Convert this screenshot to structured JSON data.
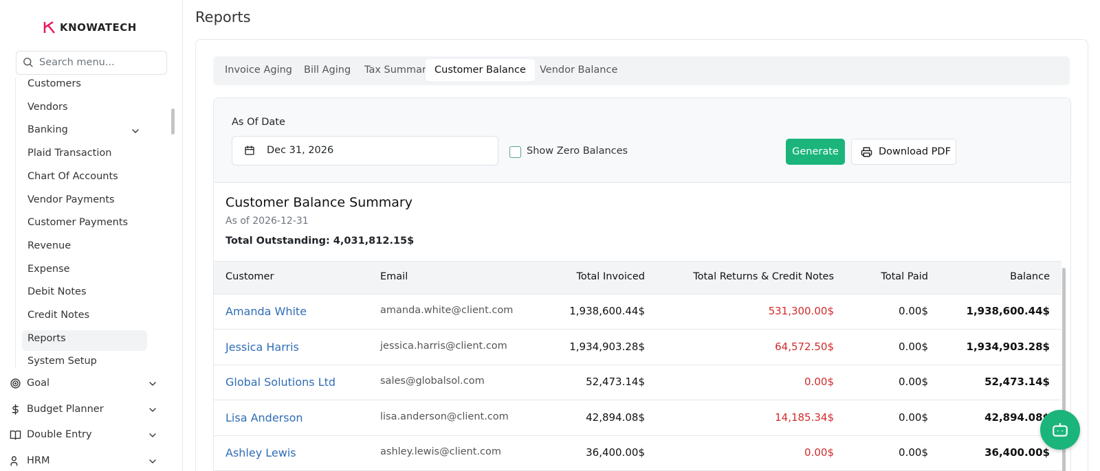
{
  "sidebar": {
    "brand": "KNOWATECH",
    "search_placeholder": "Search menu...",
    "items": [
      "Customers",
      "Vendors",
      "Banking",
      "Plaid Transaction",
      "Chart Of Accounts",
      "Vendor Payments",
      "Customer Payments",
      "Revenue",
      "Expense",
      "Debit Notes",
      "Credit Notes",
      "Reports",
      "System Setup"
    ],
    "active_item": 11,
    "expandable_item": 2,
    "groups": [
      "Goal",
      "Budget Planner",
      "Double Entry",
      "HRM"
    ]
  },
  "page": {
    "title": "Reports"
  },
  "tabs": {
    "items": [
      "Invoice Aging",
      "Bill Aging",
      "Tax Summary",
      "Customer Balance",
      "Vendor Balance"
    ],
    "active": 3
  },
  "filters": {
    "date_label": "As Of Date",
    "date_value": "Dec 31, 2026",
    "zero_balances_label": "Show Zero Balances",
    "generate": "Generate",
    "download": "Download PDF"
  },
  "summary": {
    "title": "Customer Balance Summary",
    "as_of": "As of 2026-12-31",
    "total": "Total Outstanding: 4,031,812.15$"
  },
  "table": {
    "columns": [
      "Customer",
      "Email",
      "Total Invoiced",
      "Total Returns & Credit Notes",
      "Total Paid",
      "Balance"
    ],
    "rows": [
      [
        "Amanda White",
        "amanda.white@client.com",
        "1,938,600.44$",
        "531,300.00$",
        "0.00$",
        "1,938,600.44$"
      ],
      [
        "Jessica Harris",
        "jessica.harris@client.com",
        "1,934,903.28$",
        "64,572.50$",
        "0.00$",
        "1,934,903.28$"
      ],
      [
        "Global Solutions Ltd",
        "sales@globalsol.com",
        "52,473.14$",
        "0.00$",
        "0.00$",
        "52,473.14$"
      ],
      [
        "Lisa Anderson",
        "lisa.anderson@client.com",
        "42,894.08$",
        "14,185.34$",
        "0.00$",
        "42,894.08$"
      ],
      [
        "Ashley Lewis",
        "ashley.lewis@client.com",
        "36,400.00$",
        "0.00$",
        "0.00$",
        "36,400.00$"
      ]
    ]
  }
}
